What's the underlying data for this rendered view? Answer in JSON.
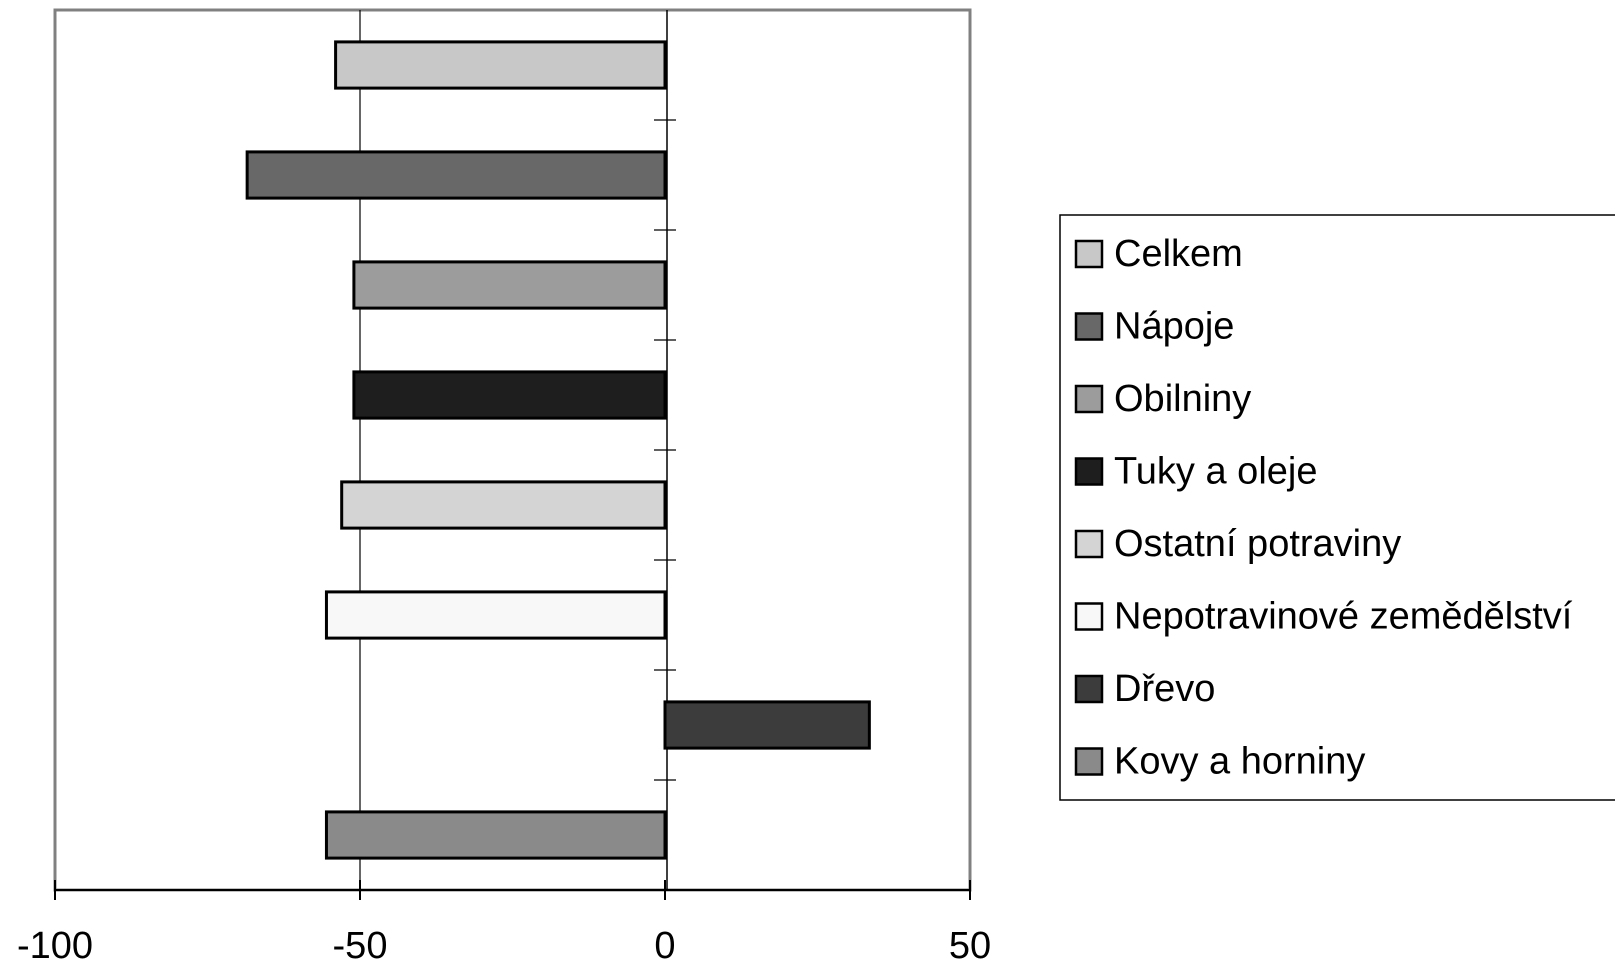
{
  "chart_data": {
    "type": "bar",
    "orientation": "horizontal",
    "title": "",
    "xlabel": "",
    "ylabel": "",
    "xlim": [
      -100,
      50
    ],
    "x_ticks": [
      -100,
      -50,
      0,
      50
    ],
    "x_tick_labels": [
      "-100",
      "-50",
      "0",
      "50"
    ],
    "grid": true,
    "legend_position": "right",
    "series": [
      {
        "name": "Celkem",
        "value": -54,
        "color": "#c8c8c8"
      },
      {
        "name": "Nápoje",
        "value": -68.5,
        "color": "#686868"
      },
      {
        "name": "Obilniny",
        "value": -51,
        "color": "#9c9c9c"
      },
      {
        "name": "Tuky a oleje",
        "value": -51,
        "color": "#1e1e1e"
      },
      {
        "name": "Ostatní potraviny",
        "value": -53,
        "color": "#d4d4d4"
      },
      {
        "name": "Nepotravinové zemědělství",
        "value": -55.5,
        "color": "#f8f8f8"
      },
      {
        "name": "Dřevo",
        "value": 33.5,
        "color": "#3c3c3c"
      },
      {
        "name": "Kovy a horniny",
        "value": -55.5,
        "color": "#8a8a8a"
      }
    ]
  }
}
